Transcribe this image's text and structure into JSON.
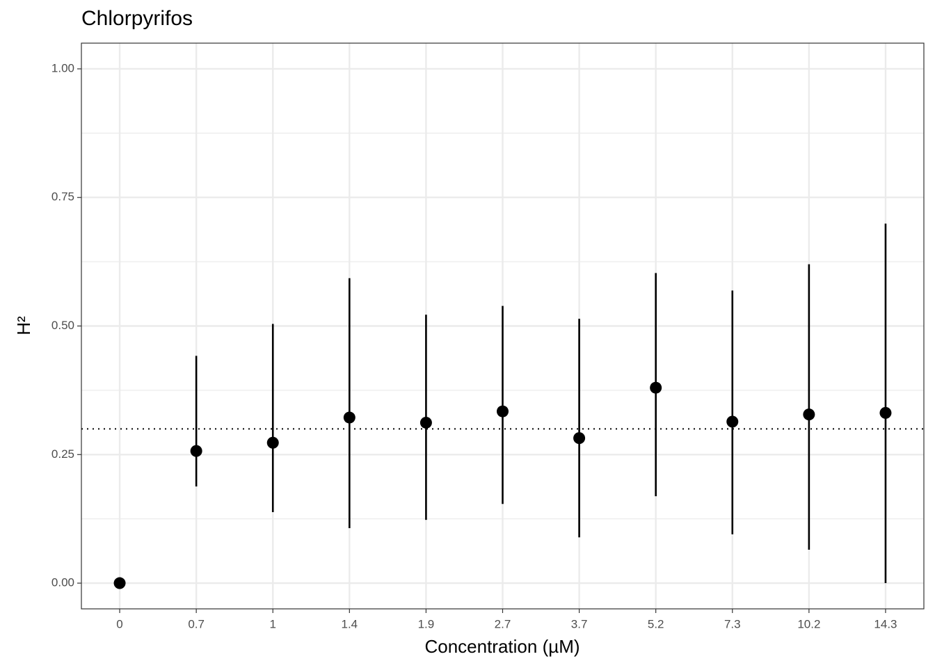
{
  "chart_data": {
    "type": "pointrange",
    "title": "Chlorpyrifos",
    "xlabel": "Concentration (µM)",
    "ylabel": "H²",
    "categories": [
      "0",
      "0.7",
      "1",
      "1.4",
      "1.9",
      "2.7",
      "3.7",
      "5.2",
      "7.3",
      "10.2",
      "14.3"
    ],
    "values": [
      0,
      0.257,
      0.273,
      0.322,
      0.312,
      0.334,
      0.282,
      0.38,
      0.314,
      0.328,
      0.331
    ],
    "lower": [
      0,
      0.188,
      0.138,
      0.107,
      0.123,
      0.154,
      0.089,
      0.169,
      0.095,
      0.065,
      0.0
    ],
    "upper": [
      0,
      0.442,
      0.504,
      0.593,
      0.522,
      0.539,
      0.514,
      0.603,
      0.569,
      0.62,
      0.699
    ],
    "color": "#000000",
    "hline": 0.3,
    "ylim": [
      -0.05,
      1.05
    ],
    "yticks": [
      {
        "value": 0,
        "label": "0.00"
      },
      {
        "value": 0.25,
        "label": "0.25"
      },
      {
        "value": 0.5,
        "label": "0.50"
      },
      {
        "value": 0.75,
        "label": "0.75"
      },
      {
        "value": 1,
        "label": "1.00"
      }
    ],
    "y_minor_grid": [
      0.125,
      0.375,
      0.625,
      0.875
    ],
    "grid": true
  }
}
